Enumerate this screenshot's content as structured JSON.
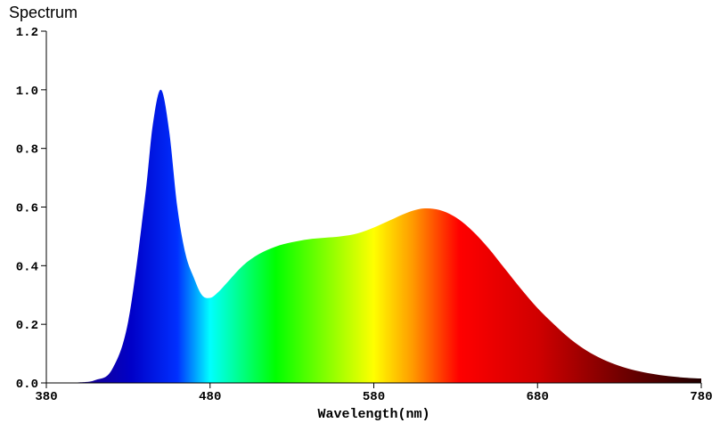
{
  "chart_data": {
    "type": "area",
    "title": "Spectrum",
    "xlabel": "Wavelength(nm)",
    "ylabel": "",
    "xlim": [
      380,
      780
    ],
    "ylim": [
      0,
      1.2
    ],
    "x_ticks": [
      "380",
      "480",
      "580",
      "680",
      "780"
    ],
    "y_ticks": [
      "0.0",
      "0.2",
      "0.4",
      "0.6",
      "0.8",
      "1.0",
      "1.2"
    ],
    "grid": false,
    "fill": "visible-spectrum colour gradient",
    "x": [
      380,
      400,
      410,
      420,
      430,
      440,
      445,
      450,
      455,
      460,
      465,
      470,
      475,
      480,
      485,
      490,
      500,
      510,
      520,
      530,
      540,
      550,
      560,
      570,
      580,
      590,
      600,
      610,
      620,
      630,
      640,
      650,
      660,
      670,
      680,
      690,
      700,
      710,
      720,
      730,
      740,
      750,
      760,
      770,
      780
    ],
    "values": [
      0.0,
      0.002,
      0.01,
      0.045,
      0.21,
      0.62,
      0.88,
      1.0,
      0.86,
      0.6,
      0.44,
      0.36,
      0.3,
      0.29,
      0.31,
      0.34,
      0.4,
      0.44,
      0.465,
      0.48,
      0.49,
      0.495,
      0.5,
      0.51,
      0.53,
      0.555,
      0.58,
      0.595,
      0.59,
      0.565,
      0.52,
      0.46,
      0.39,
      0.32,
      0.255,
      0.2,
      0.15,
      0.11,
      0.08,
      0.058,
      0.042,
      0.031,
      0.023,
      0.018,
      0.015
    ]
  }
}
